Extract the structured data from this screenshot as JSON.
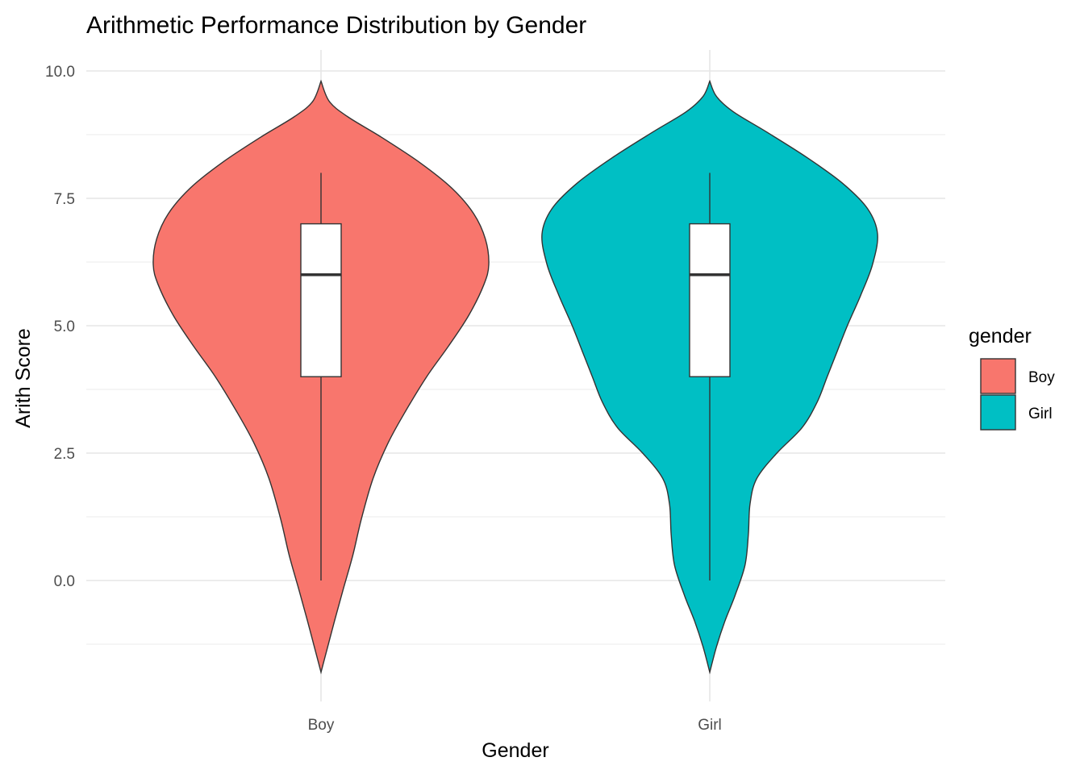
{
  "chart_data": {
    "type": "violin",
    "title": "Arithmetic Performance Distribution by Gender",
    "xlabel": "Gender",
    "ylabel": "Arith Score",
    "categories": [
      "Boy",
      "Girl"
    ],
    "ylim": [
      -1.8,
      10.0
    ],
    "yticks": [
      "0.0",
      "2.5",
      "5.0",
      "7.5",
      "10.0"
    ],
    "grid": true,
    "legend": {
      "title": "gender",
      "position": "right",
      "entries": [
        {
          "label": "Boy",
          "color": "#F8766D"
        },
        {
          "label": "Girl",
          "color": "#00BFC4"
        }
      ]
    },
    "series": [
      {
        "name": "Boy",
        "color": "#F8766D",
        "boxplot": {
          "min": 0,
          "q1": 4,
          "median": 6,
          "q3": 7,
          "max": 8
        },
        "violin_range": [
          -1.8,
          9.8
        ],
        "density_profile": [
          {
            "y": -1.8,
            "w": 0.0
          },
          {
            "y": -1.3,
            "w": 0.04
          },
          {
            "y": -0.8,
            "w": 0.08
          },
          {
            "y": -0.2,
            "w": 0.13
          },
          {
            "y": 0.5,
            "w": 0.19
          },
          {
            "y": 1.2,
            "w": 0.24
          },
          {
            "y": 2.0,
            "w": 0.31
          },
          {
            "y": 2.7,
            "w": 0.4
          },
          {
            "y": 3.3,
            "w": 0.5
          },
          {
            "y": 4.0,
            "w": 0.63
          },
          {
            "y": 4.6,
            "w": 0.76
          },
          {
            "y": 5.2,
            "w": 0.88
          },
          {
            "y": 5.8,
            "w": 0.97
          },
          {
            "y": 6.2,
            "w": 1.0
          },
          {
            "y": 6.7,
            "w": 0.98
          },
          {
            "y": 7.2,
            "w": 0.91
          },
          {
            "y": 7.7,
            "w": 0.78
          },
          {
            "y": 8.2,
            "w": 0.59
          },
          {
            "y": 8.7,
            "w": 0.36
          },
          {
            "y": 9.1,
            "w": 0.16
          },
          {
            "y": 9.4,
            "w": 0.05
          },
          {
            "y": 9.8,
            "w": 0.0
          }
        ]
      },
      {
        "name": "Girl",
        "color": "#00BFC4",
        "boxplot": {
          "min": 0,
          "q1": 4,
          "median": 6,
          "q3": 7,
          "max": 8
        },
        "violin_range": [
          -1.8,
          9.8
        ],
        "density_profile": [
          {
            "y": -1.8,
            "w": 0.0
          },
          {
            "y": -1.3,
            "w": 0.04
          },
          {
            "y": -0.8,
            "w": 0.09
          },
          {
            "y": -0.3,
            "w": 0.15
          },
          {
            "y": 0.3,
            "w": 0.21
          },
          {
            "y": 0.9,
            "w": 0.23
          },
          {
            "y": 1.5,
            "w": 0.24
          },
          {
            "y": 2.0,
            "w": 0.28
          },
          {
            "y": 2.5,
            "w": 0.4
          },
          {
            "y": 3.0,
            "w": 0.55
          },
          {
            "y": 3.5,
            "w": 0.64
          },
          {
            "y": 4.0,
            "w": 0.7
          },
          {
            "y": 4.5,
            "w": 0.76
          },
          {
            "y": 5.0,
            "w": 0.82
          },
          {
            "y": 5.6,
            "w": 0.9
          },
          {
            "y": 6.2,
            "w": 0.97
          },
          {
            "y": 6.8,
            "w": 1.0
          },
          {
            "y": 7.3,
            "w": 0.94
          },
          {
            "y": 7.8,
            "w": 0.79
          },
          {
            "y": 8.3,
            "w": 0.58
          },
          {
            "y": 8.8,
            "w": 0.34
          },
          {
            "y": 9.2,
            "w": 0.14
          },
          {
            "y": 9.5,
            "w": 0.04
          },
          {
            "y": 9.8,
            "w": 0.0
          }
        ]
      }
    ]
  }
}
